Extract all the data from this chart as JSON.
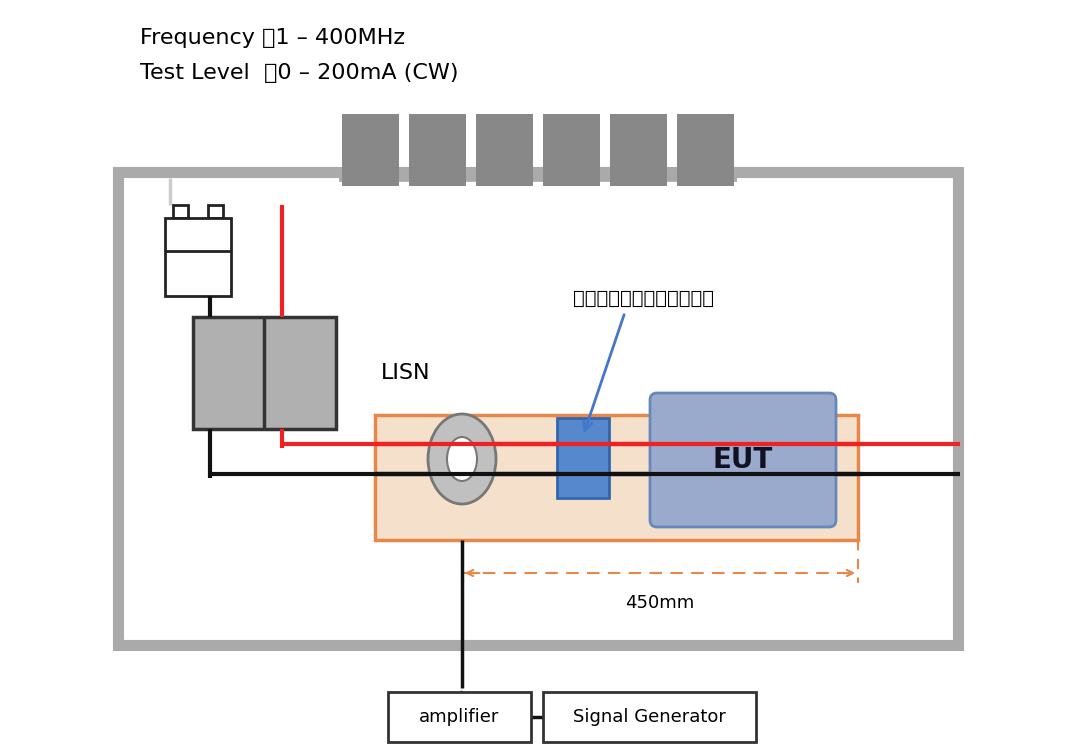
{
  "title_line1": "Frequency ：1 – 400MHz",
  "title_line2": "Test Level  ：0 – 200mA (CW)",
  "label_lisn": "LISN",
  "label_eut": "EUT",
  "label_annotation": "安装了共模拼流线圈的基板",
  "label_450mm": "450mm",
  "label_amplifier": "amplifier",
  "label_signal_gen": "Signal Generator",
  "bg_color": "#ffffff",
  "orange_edge": "#e8874a",
  "orange_fill": "#f5e0cc",
  "gray_block": "#888888",
  "eut_edge": "#6688bb",
  "eut_fill": "#99aacc",
  "blue_comp_edge": "#3366aa",
  "blue_comp_fill": "#5588cc",
  "lisn_fill": "#b0b0b0",
  "red_wire": "#ee2222",
  "black_wire": "#111111",
  "arrow_blue": "#4477cc",
  "box_edge": "#aaaaaa",
  "annotation_color": "#000000"
}
